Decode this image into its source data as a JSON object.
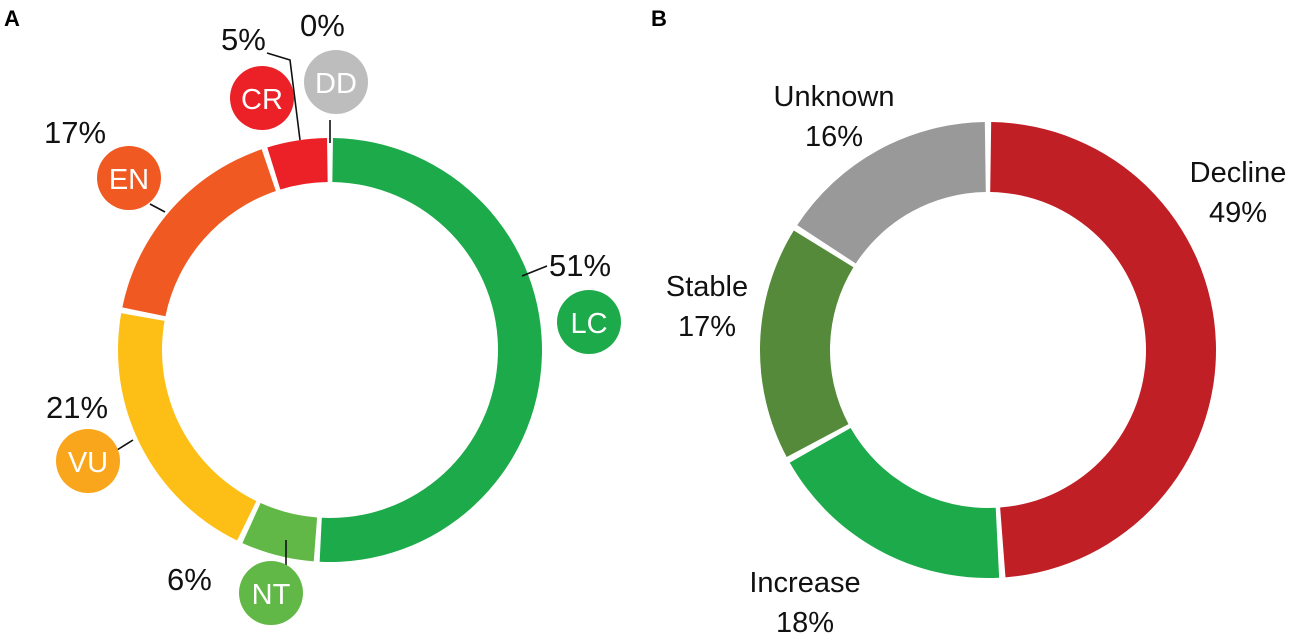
{
  "chart_data": [
    {
      "type": "pie",
      "panel": "A",
      "slices": [
        {
          "code": "LC",
          "label": "51%",
          "value": 51,
          "color": "#1DAA4B"
        },
        {
          "code": "NT",
          "label": "6%",
          "value": 6,
          "color": "#62B846"
        },
        {
          "code": "VU",
          "label": "21%",
          "value": 21,
          "color": "#FDBF16"
        },
        {
          "code": "EN",
          "label": "17%",
          "value": 17,
          "color": "#F05A22"
        },
        {
          "code": "CR",
          "label": "5%",
          "value": 5,
          "color": "#EC2027"
        },
        {
          "code": "DD",
          "label": "0%",
          "value": 0,
          "color": "#BDBDBD"
        }
      ],
      "badge_colors": {
        "LC": "#1DAA4B",
        "NT": "#62B846",
        "VU": "#F9A61C",
        "EN": "#F05A22",
        "CR": "#EC2027",
        "DD": "#BDBDBD"
      }
    },
    {
      "type": "pie",
      "panel": "B",
      "slices": [
        {
          "name": "Decline",
          "label": "49%",
          "value": 49,
          "color": "#C01F26"
        },
        {
          "name": "Increase",
          "label": "18%",
          "value": 18,
          "color": "#1DAA4B"
        },
        {
          "name": "Stable",
          "label": "17%",
          "value": 17,
          "color": "#548A3A"
        },
        {
          "name": "Unknown",
          "label": "16%",
          "value": 16,
          "color": "#999999"
        }
      ]
    }
  ]
}
